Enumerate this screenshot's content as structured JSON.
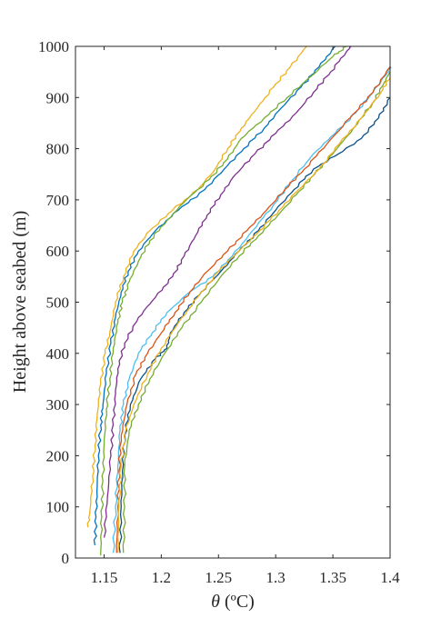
{
  "chart_data": {
    "type": "line",
    "title": "",
    "xlabel_symbol": "θ",
    "xlabel_unit": " (ºC)",
    "ylabel": "Height above seabed (m)",
    "xlim": [
      1.125,
      1.4
    ],
    "ylim": [
      0,
      1000
    ],
    "x_ticks": [
      1.15,
      1.2,
      1.25,
      1.3,
      1.35,
      1.4
    ],
    "x_tick_labels": [
      "1.15",
      "1.2",
      "1.25",
      "1.3",
      "1.35",
      "1.4"
    ],
    "y_ticks": [
      0,
      100,
      200,
      300,
      400,
      500,
      600,
      700,
      800,
      900,
      1000
    ],
    "y_tick_labels": [
      "0",
      "100",
      "200",
      "300",
      "400",
      "500",
      "600",
      "700",
      "800",
      "900",
      "1000"
    ],
    "grid": false,
    "legend": "none",
    "series": [
      {
        "color": "#EDB120",
        "points": [
          [
            1.136,
            60
          ],
          [
            1.138,
            100
          ],
          [
            1.14,
            160
          ],
          [
            1.142,
            220
          ],
          [
            1.144,
            280
          ],
          [
            1.147,
            340
          ],
          [
            1.151,
            400
          ],
          [
            1.156,
            450
          ],
          [
            1.16,
            500
          ],
          [
            1.167,
            550
          ],
          [
            1.176,
            600
          ],
          [
            1.19,
            640
          ],
          [
            1.21,
            680
          ],
          [
            1.232,
            720
          ],
          [
            1.247,
            760
          ],
          [
            1.258,
            800
          ],
          [
            1.27,
            840
          ],
          [
            1.284,
            880
          ],
          [
            1.298,
            920
          ],
          [
            1.313,
            960
          ],
          [
            1.327,
            1000
          ]
        ]
      },
      {
        "color": "#0072BD",
        "points": [
          [
            1.142,
            25
          ],
          [
            1.143,
            80
          ],
          [
            1.144,
            140
          ],
          [
            1.145,
            200
          ],
          [
            1.147,
            260
          ],
          [
            1.149,
            300
          ],
          [
            1.152,
            360
          ],
          [
            1.156,
            420
          ],
          [
            1.16,
            470
          ],
          [
            1.165,
            520
          ],
          [
            1.171,
            560
          ],
          [
            1.18,
            600
          ],
          [
            1.195,
            640
          ],
          [
            1.215,
            680
          ],
          [
            1.238,
            720
          ],
          [
            1.255,
            760
          ],
          [
            1.272,
            800
          ],
          [
            1.29,
            840
          ],
          [
            1.305,
            880
          ],
          [
            1.322,
            920
          ],
          [
            1.338,
            960
          ],
          [
            1.352,
            1000
          ]
        ]
      },
      {
        "color": "#77AC30",
        "points": [
          [
            1.147,
            5
          ],
          [
            1.148,
            80
          ],
          [
            1.149,
            150
          ],
          [
            1.15,
            220
          ],
          [
            1.152,
            290
          ],
          [
            1.155,
            350
          ],
          [
            1.158,
            410
          ],
          [
            1.162,
            460
          ],
          [
            1.166,
            500
          ],
          [
            1.172,
            540
          ],
          [
            1.18,
            580
          ],
          [
            1.19,
            620
          ],
          [
            1.205,
            660
          ],
          [
            1.222,
            700
          ],
          [
            1.242,
            740
          ],
          [
            1.258,
            780
          ],
          [
            1.27,
            820
          ],
          [
            1.29,
            860
          ],
          [
            1.31,
            900
          ],
          [
            1.33,
            940
          ],
          [
            1.35,
            980
          ],
          [
            1.362,
            1000
          ]
        ]
      },
      {
        "color": "#7E2F8E",
        "points": [
          [
            1.15,
            40
          ],
          [
            1.153,
            120
          ],
          [
            1.156,
            200
          ],
          [
            1.158,
            260
          ],
          [
            1.16,
            320
          ],
          [
            1.162,
            370
          ],
          [
            1.168,
            420
          ],
          [
            1.18,
            470
          ],
          [
            1.195,
            510
          ],
          [
            1.21,
            550
          ],
          [
            1.22,
            590
          ],
          [
            1.23,
            630
          ],
          [
            1.24,
            670
          ],
          [
            1.252,
            710
          ],
          [
            1.265,
            750
          ],
          [
            1.282,
            790
          ],
          [
            1.3,
            830
          ],
          [
            1.318,
            870
          ],
          [
            1.333,
            910
          ],
          [
            1.348,
            950
          ],
          [
            1.362,
            990
          ],
          [
            1.366,
            1000
          ]
        ]
      },
      {
        "color": "#4DBEEE",
        "points": [
          [
            1.158,
            10
          ],
          [
            1.16,
            100
          ],
          [
            1.162,
            180
          ],
          [
            1.164,
            250
          ],
          [
            1.167,
            300
          ],
          [
            1.172,
            350
          ],
          [
            1.18,
            400
          ],
          [
            1.192,
            440
          ],
          [
            1.205,
            480
          ],
          [
            1.225,
            520
          ],
          [
            1.245,
            550
          ],
          [
            1.262,
            590
          ],
          [
            1.28,
            640
          ],
          [
            1.298,
            690
          ],
          [
            1.315,
            740
          ],
          [
            1.333,
            790
          ],
          [
            1.352,
            830
          ],
          [
            1.37,
            870
          ],
          [
            1.385,
            910
          ],
          [
            1.398,
            950
          ],
          [
            1.4,
            960
          ]
        ]
      },
      {
        "color": "#D95319",
        "points": [
          [
            1.161,
            10
          ],
          [
            1.162,
            100
          ],
          [
            1.163,
            170
          ],
          [
            1.165,
            240
          ],
          [
            1.17,
            300
          ],
          [
            1.178,
            360
          ],
          [
            1.188,
            400
          ],
          [
            1.2,
            440
          ],
          [
            1.212,
            480
          ],
          [
            1.225,
            520
          ],
          [
            1.24,
            560
          ],
          [
            1.258,
            600
          ],
          [
            1.275,
            640
          ],
          [
            1.292,
            680
          ],
          [
            1.308,
            720
          ],
          [
            1.325,
            760
          ],
          [
            1.345,
            810
          ],
          [
            1.365,
            860
          ],
          [
            1.385,
            910
          ],
          [
            1.4,
            960
          ]
        ]
      },
      {
        "color": "#0B4F8A",
        "points": [
          [
            1.164,
            10
          ],
          [
            1.165,
            100
          ],
          [
            1.166,
            170
          ],
          [
            1.168,
            240
          ],
          [
            1.173,
            300
          ],
          [
            1.182,
            350
          ],
          [
            1.195,
            390
          ],
          [
            1.205,
            410
          ],
          [
            1.208,
            440
          ],
          [
            1.22,
            480
          ],
          [
            1.235,
            520
          ],
          [
            1.252,
            560
          ],
          [
            1.268,
            600
          ],
          [
            1.285,
            640
          ],
          [
            1.3,
            680
          ],
          [
            1.316,
            720
          ],
          [
            1.333,
            760
          ],
          [
            1.355,
            790
          ],
          [
            1.375,
            820
          ],
          [
            1.39,
            860
          ],
          [
            1.4,
            900
          ]
        ]
      },
      {
        "color": "#77AC30",
        "points": [
          [
            1.167,
            10
          ],
          [
            1.168,
            100
          ],
          [
            1.168,
            180
          ],
          [
            1.172,
            250
          ],
          [
            1.18,
            300
          ],
          [
            1.19,
            350
          ],
          [
            1.203,
            400
          ],
          [
            1.218,
            450
          ],
          [
            1.235,
            500
          ],
          [
            1.252,
            550
          ],
          [
            1.268,
            590
          ],
          [
            1.285,
            630
          ],
          [
            1.302,
            670
          ],
          [
            1.318,
            710
          ],
          [
            1.334,
            750
          ],
          [
            1.35,
            790
          ],
          [
            1.368,
            840
          ],
          [
            1.385,
            890
          ],
          [
            1.395,
            930
          ],
          [
            1.4,
            950
          ]
        ]
      },
      {
        "color": "#EDB120",
        "points": [
          [
            1.162,
            10
          ],
          [
            1.163,
            100
          ],
          [
            1.165,
            180
          ],
          [
            1.169,
            250
          ],
          [
            1.176,
            300
          ],
          [
            1.188,
            360
          ],
          [
            1.2,
            410
          ],
          [
            1.215,
            460
          ],
          [
            1.232,
            510
          ],
          [
            1.25,
            560
          ],
          [
            1.268,
            600
          ],
          [
            1.286,
            640
          ],
          [
            1.303,
            680
          ],
          [
            1.32,
            720
          ],
          [
            1.338,
            760
          ],
          [
            1.356,
            810
          ],
          [
            1.375,
            860
          ],
          [
            1.392,
            910
          ],
          [
            1.4,
            940
          ]
        ]
      }
    ]
  }
}
